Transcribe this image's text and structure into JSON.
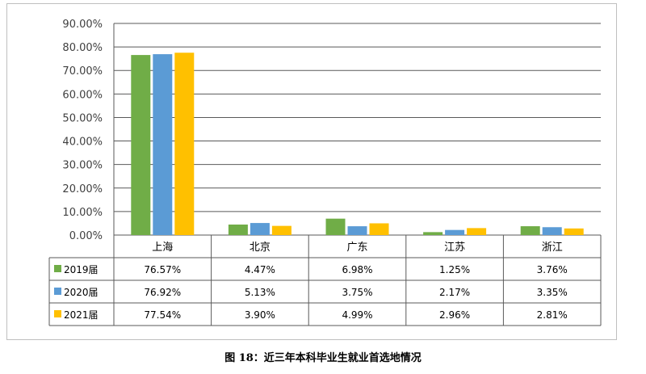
{
  "caption": "图 18：近三年本科毕业生就业首选地情况",
  "chart_data": {
    "type": "bar",
    "categories": [
      "上海",
      "北京",
      "广东",
      "江苏",
      "浙江"
    ],
    "series": [
      {
        "name": "2019届",
        "color": "#70ad47",
        "values": [
          76.57,
          4.47,
          6.98,
          1.25,
          3.76
        ],
        "labels": [
          "76.57%",
          "4.47%",
          "6.98%",
          "1.25%",
          "3.76%"
        ]
      },
      {
        "name": "2020届",
        "color": "#5b9bd5",
        "values": [
          76.92,
          5.13,
          3.75,
          2.17,
          3.35
        ],
        "labels": [
          "76.92%",
          "5.13%",
          "3.75%",
          "2.17%",
          "3.35%"
        ]
      },
      {
        "name": "2021届",
        "color": "#ffc000",
        "values": [
          77.54,
          3.9,
          4.99,
          2.96,
          2.81
        ],
        "labels": [
          "77.54%",
          "3.90%",
          "4.99%",
          "2.96%",
          "2.81%"
        ]
      }
    ],
    "ylim": [
      0,
      90
    ],
    "yticks": [
      "0.00%",
      "10.00%",
      "20.00%",
      "30.00%",
      "40.00%",
      "50.00%",
      "60.00%",
      "70.00%",
      "80.00%",
      "90.00%"
    ],
    "grid": true,
    "legend": "data-table"
  }
}
